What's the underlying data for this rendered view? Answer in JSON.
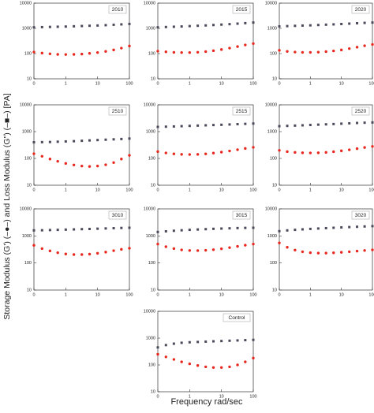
{
  "y_label": "Storage Modulus (G') (–●–) and Loss Modulus (G\") (–■–) [PA]",
  "x_label": "Frequency rad/sec",
  "chart_data": [
    {
      "type": "scatter",
      "title": "2010",
      "x": [
        0.1,
        0.18,
        0.32,
        0.56,
        1,
        1.8,
        3.2,
        5.6,
        10,
        18,
        32,
        56,
        100
      ],
      "xlim": [
        0.1,
        100
      ],
      "ylim": [
        10,
        10000
      ],
      "log_x": true,
      "log_y": true,
      "xticks": [
        {
          "value": 0.1,
          "label": "0"
        },
        1,
        10,
        100
      ],
      "yticks": [
        10,
        100,
        1000,
        10000
      ],
      "series": [
        {
          "color": "#4a4a5a",
          "marker": "square",
          "values": [
            1100,
            1120,
            1140,
            1160,
            1180,
            1210,
            1240,
            1270,
            1300,
            1340,
            1390,
            1440,
            1500
          ]
        },
        {
          "color": "#e8281e",
          "marker": "circle",
          "values": [
            115,
            105,
            98,
            93,
            92,
            93,
            96,
            102,
            110,
            122,
            140,
            165,
            200
          ]
        }
      ]
    },
    {
      "type": "scatter",
      "title": "2015",
      "x": [
        0.1,
        0.18,
        0.32,
        0.56,
        1,
        1.8,
        3.2,
        5.6,
        10,
        18,
        32,
        56,
        100
      ],
      "xlim": [
        0.1,
        100
      ],
      "ylim": [
        10,
        10000
      ],
      "log_x": true,
      "log_y": true,
      "xticks": [
        {
          "value": 0.1,
          "label": "0"
        },
        1,
        10,
        100
      ],
      "yticks": [
        10,
        100,
        1000,
        10000
      ],
      "series": [
        {
          "color": "#4a4a5a",
          "marker": "square",
          "values": [
            1100,
            1130,
            1160,
            1190,
            1230,
            1270,
            1310,
            1360,
            1410,
            1470,
            1540,
            1610,
            1700
          ]
        },
        {
          "color": "#e8281e",
          "marker": "circle",
          "values": [
            125,
            118,
            112,
            110,
            110,
            113,
            120,
            130,
            145,
            165,
            190,
            220,
            250
          ]
        }
      ]
    },
    {
      "type": "scatter",
      "title": "2020",
      "x": [
        0.1,
        0.18,
        0.32,
        0.56,
        1,
        1.8,
        3.2,
        5.6,
        10,
        18,
        32,
        56,
        100
      ],
      "xlim": [
        0.1,
        100
      ],
      "ylim": [
        10,
        10000
      ],
      "log_x": true,
      "log_y": true,
      "xticks": [
        {
          "value": 0.1,
          "label": "0"
        },
        1,
        10,
        100
      ],
      "yticks": [
        10,
        100,
        1000,
        10000
      ],
      "series": [
        {
          "color": "#4a4a5a",
          "marker": "square",
          "values": [
            1200,
            1230,
            1260,
            1290,
            1320,
            1360,
            1400,
            1440,
            1490,
            1540,
            1600,
            1650,
            1700
          ]
        },
        {
          "color": "#e8281e",
          "marker": "circle",
          "values": [
            135,
            122,
            115,
            112,
            112,
            114,
            120,
            128,
            140,
            158,
            180,
            205,
            230
          ]
        }
      ]
    },
    {
      "type": "scatter",
      "title": "2510",
      "x": [
        0.1,
        0.18,
        0.32,
        0.56,
        1,
        1.8,
        3.2,
        5.6,
        10,
        18,
        32,
        56,
        100
      ],
      "xlim": [
        0.1,
        100
      ],
      "ylim": [
        10,
        10000
      ],
      "log_x": true,
      "log_y": true,
      "xticks": [
        {
          "value": 0.1,
          "label": "0"
        },
        1,
        10,
        100
      ],
      "yticks": [
        10,
        100,
        1000,
        10000
      ],
      "series": [
        {
          "color": "#4a4a5a",
          "marker": "square",
          "values": [
            400,
            405,
            410,
            420,
            430,
            440,
            455,
            470,
            485,
            500,
            515,
            530,
            550
          ]
        },
        {
          "color": "#e8281e",
          "marker": "circle",
          "values": [
            150,
            120,
            95,
            78,
            65,
            57,
            52,
            50,
            52,
            58,
            70,
            95,
            130
          ]
        }
      ]
    },
    {
      "type": "scatter",
      "title": "2515",
      "x": [
        0.1,
        0.18,
        0.32,
        0.56,
        1,
        1.8,
        3.2,
        5.6,
        10,
        18,
        32,
        56,
        100
      ],
      "xlim": [
        0.1,
        100
      ],
      "ylim": [
        10,
        10000
      ],
      "log_x": true,
      "log_y": true,
      "xticks": [
        {
          "value": 0.1,
          "label": "0"
        },
        1,
        10,
        100
      ],
      "yticks": [
        10,
        100,
        1000,
        10000
      ],
      "series": [
        {
          "color": "#4a4a5a",
          "marker": "square",
          "values": [
            1500,
            1530,
            1560,
            1600,
            1640,
            1680,
            1720,
            1760,
            1800,
            1850,
            1900,
            1950,
            2000
          ]
        },
        {
          "color": "#e8281e",
          "marker": "circle",
          "values": [
            180,
            160,
            148,
            142,
            140,
            142,
            148,
            158,
            172,
            190,
            212,
            236,
            260
          ]
        }
      ]
    },
    {
      "type": "scatter",
      "title": "2520",
      "x": [
        0.1,
        0.18,
        0.32,
        0.56,
        1,
        1.8,
        3.2,
        5.6,
        10,
        18,
        32,
        56,
        100
      ],
      "xlim": [
        0.1,
        100
      ],
      "ylim": [
        10,
        10000
      ],
      "log_x": true,
      "log_y": true,
      "xticks": [
        {
          "value": 0.1,
          "label": "0"
        },
        1,
        10,
        100
      ],
      "yticks": [
        10,
        100,
        1000,
        10000
      ],
      "series": [
        {
          "color": "#4a4a5a",
          "marker": "square",
          "values": [
            1600,
            1640,
            1680,
            1720,
            1770,
            1820,
            1870,
            1920,
            1980,
            2040,
            2100,
            2150,
            2200
          ]
        },
        {
          "color": "#e8281e",
          "marker": "circle",
          "values": [
            200,
            180,
            168,
            162,
            160,
            162,
            168,
            178,
            192,
            210,
            232,
            256,
            280
          ]
        }
      ]
    },
    {
      "type": "scatter",
      "title": "3010",
      "x": [
        0.1,
        0.18,
        0.32,
        0.56,
        1,
        1.8,
        3.2,
        5.6,
        10,
        18,
        32,
        56,
        100
      ],
      "xlim": [
        0.1,
        100
      ],
      "ylim": [
        10,
        10000
      ],
      "log_x": true,
      "log_y": true,
      "xticks": [
        {
          "value": 0.1,
          "label": "0"
        },
        1,
        10,
        100
      ],
      "yticks": [
        10,
        100,
        1000,
        10000
      ],
      "series": [
        {
          "color": "#4a4a5a",
          "marker": "square",
          "values": [
            1600,
            1620,
            1650,
            1680,
            1710,
            1740,
            1780,
            1810,
            1850,
            1890,
            1930,
            1970,
            2000
          ]
        },
        {
          "color": "#e8281e",
          "marker": "circle",
          "values": [
            450,
            340,
            280,
            240,
            215,
            205,
            205,
            212,
            228,
            252,
            285,
            320,
            350
          ]
        }
      ]
    },
    {
      "type": "scatter",
      "title": "3015",
      "x": [
        0.1,
        0.18,
        0.32,
        0.56,
        1,
        1.8,
        3.2,
        5.6,
        10,
        18,
        32,
        56,
        100
      ],
      "xlim": [
        0.1,
        100
      ],
      "ylim": [
        10,
        10000
      ],
      "log_x": true,
      "log_y": true,
      "xticks": [
        {
          "value": 0.1,
          "label": "0"
        },
        1,
        10,
        100
      ],
      "yticks": [
        10,
        100,
        1000,
        10000
      ],
      "series": [
        {
          "color": "#4a4a5a",
          "marker": "square",
          "values": [
            1400,
            1480,
            1550,
            1620,
            1680,
            1730,
            1780,
            1830,
            1870,
            1910,
            1950,
            1980,
            2000
          ]
        },
        {
          "color": "#e8281e",
          "marker": "circle",
          "values": [
            500,
            400,
            340,
            305,
            290,
            288,
            295,
            310,
            335,
            370,
            410,
            455,
            500
          ]
        }
      ]
    },
    {
      "type": "scatter",
      "title": "3020",
      "x": [
        0.1,
        0.18,
        0.32,
        0.56,
        1,
        1.8,
        3.2,
        5.6,
        10,
        18,
        32,
        56,
        100
      ],
      "xlim": [
        0.1,
        100
      ],
      "ylim": [
        10,
        10000
      ],
      "log_x": true,
      "log_y": true,
      "xticks": [
        {
          "value": 0.1,
          "label": "0"
        },
        1,
        10,
        100
      ],
      "yticks": [
        10,
        100,
        1000,
        10000
      ],
      "series": [
        {
          "color": "#4a4a5a",
          "marker": "square",
          "values": [
            1500,
            1600,
            1680,
            1750,
            1820,
            1880,
            1940,
            2000,
            2060,
            2120,
            2180,
            2240,
            2300
          ]
        },
        {
          "color": "#e8281e",
          "marker": "circle",
          "values": [
            550,
            380,
            300,
            260,
            240,
            232,
            232,
            238,
            248,
            260,
            275,
            290,
            305
          ]
        }
      ]
    },
    {
      "type": "scatter",
      "title": "Control",
      "x": [
        0.1,
        0.18,
        0.32,
        0.56,
        1,
        1.8,
        3.2,
        5.6,
        10,
        18,
        32,
        56,
        100
      ],
      "xlim": [
        0.1,
        100
      ],
      "ylim": [
        10,
        10000
      ],
      "log_x": true,
      "log_y": true,
      "xticks": [
        {
          "value": 0.1,
          "label": "0"
        },
        1,
        10,
        100
      ],
      "yticks": [
        10,
        100,
        1000,
        10000
      ],
      "series": [
        {
          "color": "#4a4a5a",
          "marker": "square",
          "values": [
            450,
            550,
            620,
            670,
            700,
            720,
            740,
            760,
            780,
            800,
            820,
            840,
            860
          ]
        },
        {
          "color": "#e8281e",
          "marker": "circle",
          "values": [
            250,
            200,
            160,
            130,
            110,
            95,
            85,
            80,
            80,
            85,
            100,
            130,
            180
          ]
        }
      ]
    }
  ]
}
